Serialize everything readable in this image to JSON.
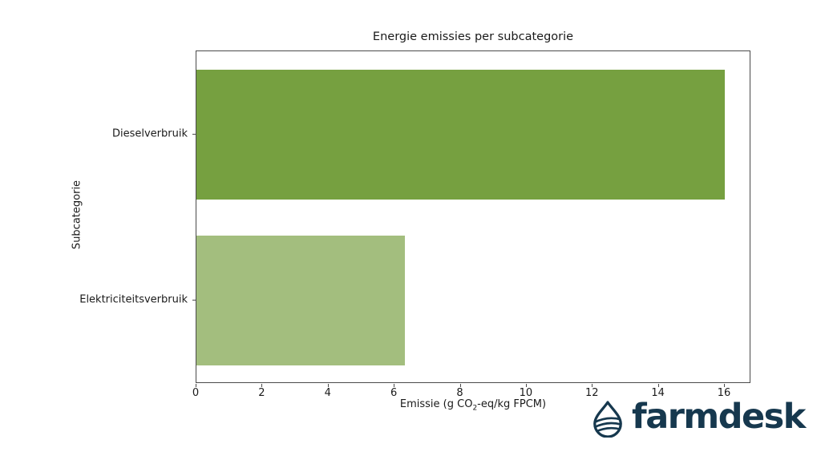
{
  "page": {
    "background": "#ffffff",
    "text_color": "#1a1a1a",
    "spine_color": "#4a4a4a"
  },
  "chart_data": {
    "type": "bar",
    "orientation": "horizontal",
    "title": "Energie emissies per subcategorie",
    "categories": [
      "Dieselverbruik",
      "Elektriciteitsverbruik"
    ],
    "values": [
      16.0,
      6.3
    ],
    "bar_colors": [
      "#76a040",
      "#a3be7e"
    ],
    "xlabel_parts": {
      "pre": "Emissie (g CO",
      "sub": "2",
      "post": "-eq/kg FPCM)"
    },
    "xlabel_plain": "Emissie (g CO2-eq/kg FPCM)",
    "ylabel": "Subcategorie",
    "xlim": [
      0,
      16.8
    ],
    "xticks": [
      0,
      2,
      4,
      6,
      8,
      10,
      12,
      14,
      16
    ],
    "grid": false,
    "legend": null,
    "bar_height_fraction": 0.78
  },
  "logo": {
    "text": "farmdesk",
    "color": "#16384e",
    "icon": "water-drop-icon"
  }
}
